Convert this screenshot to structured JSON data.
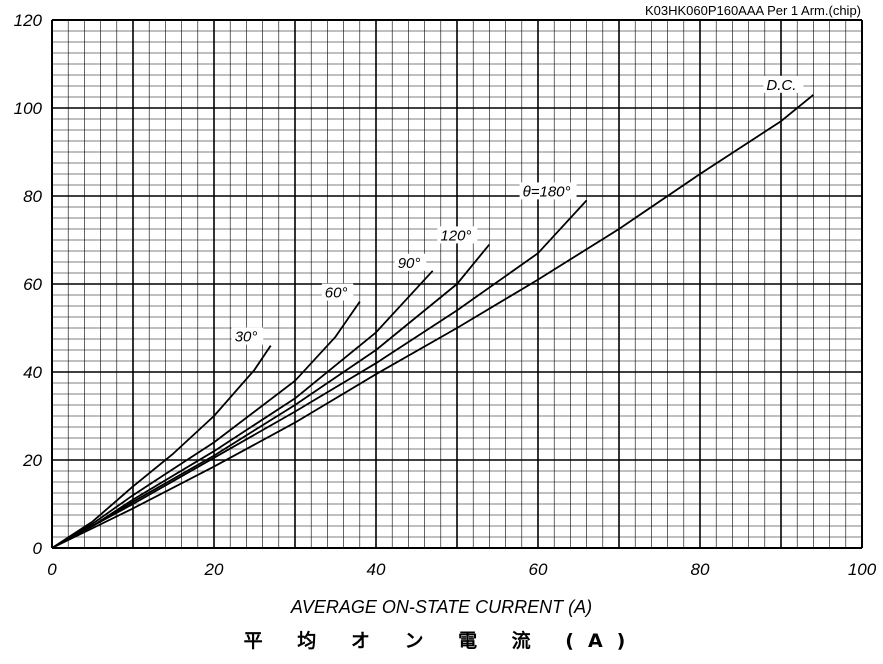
{
  "header_text": "K03HK060P160AAA  Per 1 Arm.(chip)",
  "x_axis_label": "AVERAGE ON-STATE CURRENT (A)",
  "x_axis_label_jp": "平 均 オ ン 電 流 (A)",
  "chart_data": {
    "type": "line",
    "xlabel": "AVERAGE ON-STATE CURRENT (A)",
    "ylabel": "",
    "xlim": [
      0,
      100
    ],
    "ylim": [
      0,
      120
    ],
    "x_ticks": [
      "0",
      "20",
      "40",
      "60",
      "80",
      "100"
    ],
    "y_ticks": [
      "0",
      "20",
      "40",
      "60",
      "80",
      "100",
      "120"
    ],
    "grid": true,
    "series": [
      {
        "name": "30°",
        "points": [
          [
            0,
            0
          ],
          [
            5,
            6
          ],
          [
            10,
            14
          ],
          [
            15,
            21.5
          ],
          [
            20,
            30
          ],
          [
            25,
            40.5
          ],
          [
            27,
            46
          ]
        ]
      },
      {
        "name": "60°",
        "points": [
          [
            0,
            0
          ],
          [
            5,
            5.5
          ],
          [
            10,
            12
          ],
          [
            15,
            18
          ],
          [
            20,
            24
          ],
          [
            25,
            31
          ],
          [
            30,
            38
          ],
          [
            35,
            48
          ],
          [
            38,
            56
          ]
        ]
      },
      {
        "name": "90°",
        "points": [
          [
            0,
            0
          ],
          [
            5,
            5
          ],
          [
            10,
            11
          ],
          [
            20,
            22
          ],
          [
            30,
            34
          ],
          [
            40,
            49
          ],
          [
            47,
            63
          ]
        ]
      },
      {
        "name": "120°",
        "points": [
          [
            0,
            0
          ],
          [
            5,
            5
          ],
          [
            10,
            10.5
          ],
          [
            20,
            21
          ],
          [
            30,
            32.5
          ],
          [
            40,
            45
          ],
          [
            50,
            60
          ],
          [
            54,
            69
          ]
        ]
      },
      {
        "name": "θ=180°",
        "points": [
          [
            0,
            0
          ],
          [
            10,
            10
          ],
          [
            20,
            20.5
          ],
          [
            30,
            31
          ],
          [
            40,
            42
          ],
          [
            50,
            54
          ],
          [
            60,
            67
          ],
          [
            66,
            79
          ]
        ]
      },
      {
        "name": "D.C.",
        "points": [
          [
            0,
            0
          ],
          [
            10,
            9
          ],
          [
            20,
            18.5
          ],
          [
            30,
            28.5
          ],
          [
            40,
            39.5
          ],
          [
            50,
            50
          ],
          [
            60,
            61
          ],
          [
            70,
            72.5
          ],
          [
            80,
            85
          ],
          [
            90,
            97
          ],
          [
            94,
            103
          ]
        ]
      }
    ]
  }
}
